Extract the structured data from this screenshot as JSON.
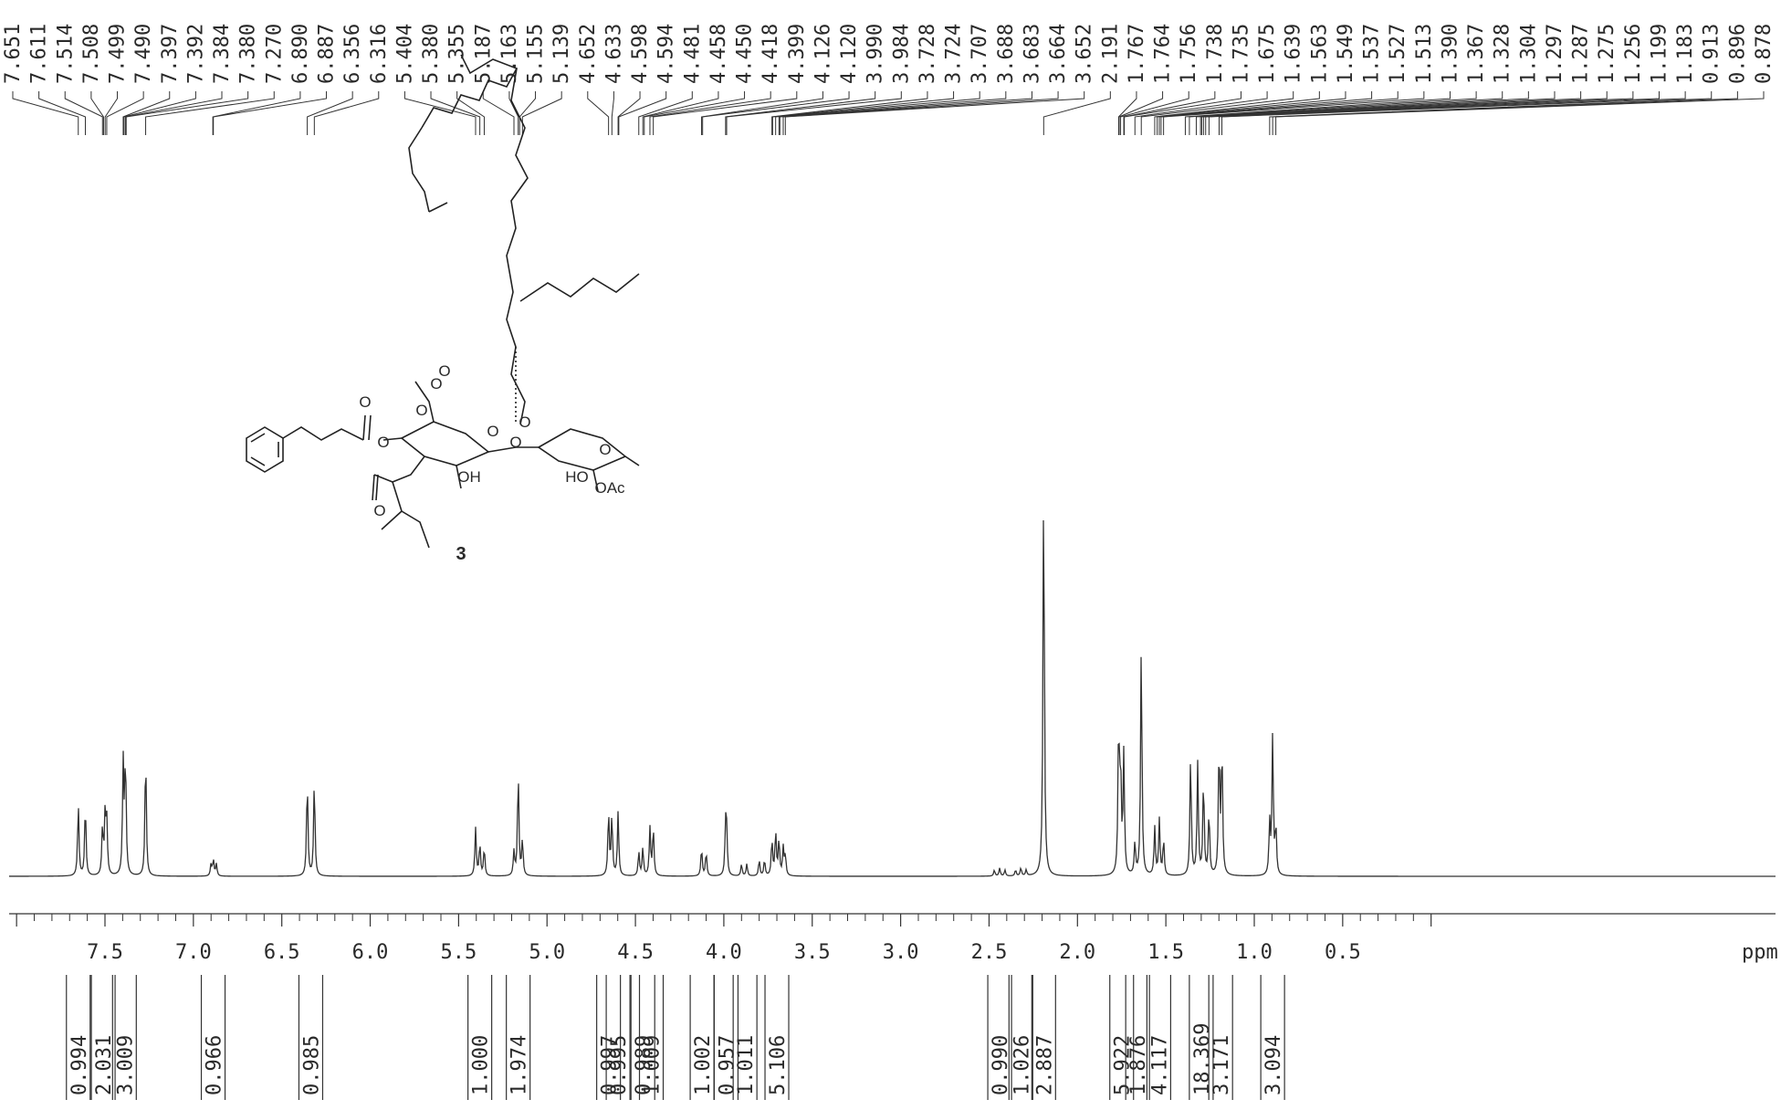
{
  "chart_data": {
    "type": "line",
    "title": "",
    "xlabel": "ppm",
    "x_axis_unit": "ppm",
    "xlim": [
      8.0,
      0.0
    ],
    "x_ticks": [
      "7.5",
      "7.0",
      "6.5",
      "6.0",
      "5.5",
      "5.0",
      "4.5",
      "4.0",
      "3.5",
      "3.0",
      "2.5",
      "2.0",
      "1.5",
      "1.0",
      "0.5"
    ],
    "x_tick_values": [
      7.5,
      7.0,
      6.5,
      6.0,
      5.5,
      5.0,
      4.5,
      4.0,
      3.5,
      3.0,
      2.5,
      2.0,
      1.5,
      1.0,
      0.5
    ],
    "grid": false,
    "peak_labels": [
      "7.651",
      "7.611",
      "7.514",
      "7.508",
      "7.499",
      "7.490",
      "7.397",
      "7.392",
      "7.384",
      "7.380",
      "7.270",
      "6.890",
      "6.887",
      "6.356",
      "6.316",
      "5.404",
      "5.380",
      "5.355",
      "5.187",
      "5.163",
      "5.155",
      "5.139",
      "4.652",
      "4.633",
      "4.598",
      "4.594",
      "4.481",
      "4.458",
      "4.450",
      "4.418",
      "4.399",
      "4.126",
      "4.120",
      "3.990",
      "3.984",
      "3.728",
      "3.724",
      "3.707",
      "3.688",
      "3.683",
      "3.664",
      "3.652",
      "2.191",
      "1.767",
      "1.764",
      "1.756",
      "1.738",
      "1.735",
      "1.675",
      "1.639",
      "1.563",
      "1.549",
      "1.537",
      "1.527",
      "1.513",
      "1.390",
      "1.367",
      "1.328",
      "1.304",
      "1.297",
      "1.287",
      "1.275",
      "1.256",
      "1.199",
      "1.183",
      "0.913",
      "0.896",
      "0.878"
    ],
    "peaks": [
      {
        "ppm": 7.651,
        "height": 0.18
      },
      {
        "ppm": 7.611,
        "height": 0.18
      },
      {
        "ppm": 7.514,
        "height": 0.12
      },
      {
        "ppm": 7.499,
        "height": 0.15
      },
      {
        "ppm": 7.49,
        "height": 0.13
      },
      {
        "ppm": 7.397,
        "height": 0.28
      },
      {
        "ppm": 7.384,
        "height": 0.29
      },
      {
        "ppm": 7.27,
        "height": 0.31
      },
      {
        "ppm": 6.9,
        "height": 0.03
      },
      {
        "ppm": 6.887,
        "height": 0.04
      },
      {
        "ppm": 6.87,
        "height": 0.03
      },
      {
        "ppm": 6.356,
        "height": 0.24
      },
      {
        "ppm": 6.316,
        "height": 0.24
      },
      {
        "ppm": 5.404,
        "height": 0.12
      },
      {
        "ppm": 5.38,
        "height": 0.08
      },
      {
        "ppm": 5.355,
        "height": 0.07
      },
      {
        "ppm": 5.187,
        "height": 0.06
      },
      {
        "ppm": 5.163,
        "height": 0.26
      },
      {
        "ppm": 5.139,
        "height": 0.09
      },
      {
        "ppm": 4.652,
        "height": 0.16
      },
      {
        "ppm": 4.633,
        "height": 0.15
      },
      {
        "ppm": 4.598,
        "height": 0.16
      },
      {
        "ppm": 4.481,
        "height": 0.06
      },
      {
        "ppm": 4.458,
        "height": 0.07
      },
      {
        "ppm": 4.418,
        "height": 0.12
      },
      {
        "ppm": 4.399,
        "height": 0.12
      },
      {
        "ppm": 4.126,
        "height": 0.07
      },
      {
        "ppm": 4.1,
        "height": 0.06
      },
      {
        "ppm": 3.99,
        "height": 0.12
      },
      {
        "ppm": 3.984,
        "height": 0.1
      },
      {
        "ppm": 3.9,
        "height": 0.03
      },
      {
        "ppm": 3.87,
        "height": 0.03
      },
      {
        "ppm": 3.8,
        "height": 0.04
      },
      {
        "ppm": 3.77,
        "height": 0.04
      },
      {
        "ppm": 3.728,
        "height": 0.09
      },
      {
        "ppm": 3.707,
        "height": 0.11
      },
      {
        "ppm": 3.688,
        "height": 0.09
      },
      {
        "ppm": 3.664,
        "height": 0.07
      },
      {
        "ppm": 3.652,
        "height": 0.05
      },
      {
        "ppm": 2.47,
        "height": 0.015
      },
      {
        "ppm": 2.44,
        "height": 0.02
      },
      {
        "ppm": 2.41,
        "height": 0.015
      },
      {
        "ppm": 2.35,
        "height": 0.015
      },
      {
        "ppm": 2.32,
        "height": 0.02
      },
      {
        "ppm": 2.29,
        "height": 0.015
      },
      {
        "ppm": 2.191,
        "height": 1.0
      },
      {
        "ppm": 1.767,
        "height": 0.37
      },
      {
        "ppm": 1.756,
        "height": 0.25
      },
      {
        "ppm": 1.738,
        "height": 0.3
      },
      {
        "ppm": 1.675,
        "height": 0.08
      },
      {
        "ppm": 1.639,
        "height": 0.58
      },
      {
        "ppm": 1.563,
        "height": 0.12
      },
      {
        "ppm": 1.537,
        "height": 0.14
      },
      {
        "ppm": 1.513,
        "height": 0.09
      },
      {
        "ppm": 1.36,
        "height": 0.3
      },
      {
        "ppm": 1.32,
        "height": 0.28
      },
      {
        "ppm": 1.287,
        "height": 0.24
      },
      {
        "ppm": 1.256,
        "height": 0.16
      },
      {
        "ppm": 1.199,
        "height": 0.32
      },
      {
        "ppm": 1.183,
        "height": 0.32
      },
      {
        "ppm": 0.913,
        "height": 0.13
      },
      {
        "ppm": 0.896,
        "height": 0.35
      },
      {
        "ppm": 0.878,
        "height": 0.12
      }
    ],
    "integrals": [
      {
        "value": "0.994",
        "ppm": 7.651
      },
      {
        "value": "2.031",
        "ppm": 7.51
      },
      {
        "value": "3.009",
        "ppm": 7.39
      },
      {
        "value": "0.966",
        "ppm": 6.888
      },
      {
        "value": "0.985",
        "ppm": 6.336
      },
      {
        "value": "1.000",
        "ppm": 5.38
      },
      {
        "value": "1.974",
        "ppm": 5.163
      },
      {
        "value": "0.997",
        "ppm": 4.652
      },
      {
        "value": "0.995",
        "ppm": 4.598
      },
      {
        "value": "0.989",
        "ppm": 4.458
      },
      {
        "value": "1.009",
        "ppm": 4.41
      },
      {
        "value": "1.002",
        "ppm": 4.123
      },
      {
        "value": "0.957",
        "ppm": 3.987
      },
      {
        "value": "1.011",
        "ppm": 3.88
      },
      {
        "value": "5.106",
        "ppm": 3.7
      },
      {
        "value": "0.990",
        "ppm": 2.44
      },
      {
        "value": "1.026",
        "ppm": 2.32
      },
      {
        "value": "2.887",
        "ppm": 2.191
      },
      {
        "value": "5.922",
        "ppm": 1.75
      },
      {
        "value": "1.876",
        "ppm": 1.66
      },
      {
        "value": "4.117",
        "ppm": 1.54
      },
      {
        "value": "18.369",
        "ppm": 1.3
      },
      {
        "value": "3.171",
        "ppm": 1.19
      },
      {
        "value": "3.094",
        "ppm": 0.896
      }
    ]
  },
  "structure": {
    "compound_number": "3",
    "atom_labels": [
      "O",
      "O",
      "O",
      "O",
      "O",
      "O",
      "O",
      "OH",
      "HO",
      "O",
      "OAc",
      "O",
      "O"
    ]
  }
}
